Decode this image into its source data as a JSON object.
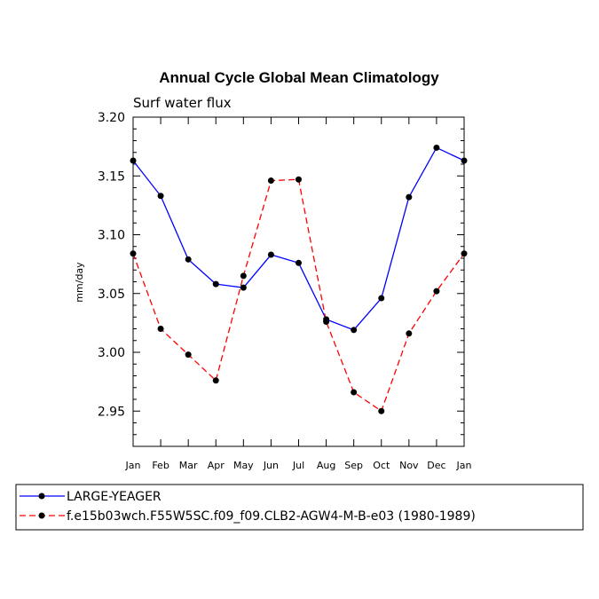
{
  "chart_data": {
    "type": "line",
    "title": "Annual Cycle Global Mean Climatology",
    "subtitle": "Surf water flux",
    "ylabel": "mm/day",
    "xlabel": "",
    "categories": [
      "Jan",
      "Feb",
      "Mar",
      "Apr",
      "May",
      "Jun",
      "Jul",
      "Aug",
      "Sep",
      "Oct",
      "Nov",
      "Dec",
      "Jan"
    ],
    "ylim": [
      2.92,
      3.2
    ],
    "yticks": [
      "3.20",
      "3.15",
      "3.10",
      "3.05",
      "3.00",
      "2.95"
    ],
    "ytick_values": [
      3.2,
      3.15,
      3.1,
      3.05,
      3.0,
      2.95
    ],
    "series": [
      {
        "name": "LARGE-YEAGER",
        "color": "#0000ff",
        "style": "solid",
        "values": [
          3.163,
          3.133,
          3.079,
          3.058,
          3.055,
          3.083,
          3.076,
          3.028,
          3.019,
          3.046,
          3.132,
          3.174,
          3.163
        ]
      },
      {
        "name": "f.e15b03wch.F55W5SC.f09_f09.CLB2-AGW4-M-B-e03 (1980-1989)",
        "color": "#ff0000",
        "style": "dashed",
        "values": [
          3.084,
          3.02,
          2.998,
          2.976,
          3.065,
          3.146,
          3.147,
          3.026,
          2.966,
          2.95,
          3.016,
          3.052,
          3.084
        ]
      }
    ],
    "legend_position": "bottom"
  }
}
